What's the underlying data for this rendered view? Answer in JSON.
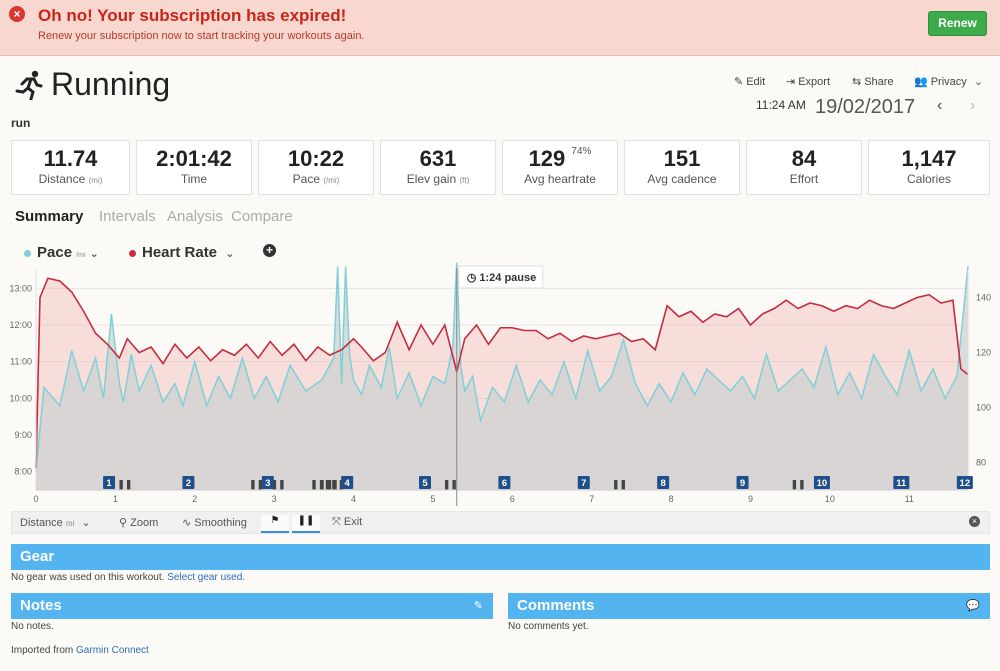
{
  "banner": {
    "title": "Oh no! Your subscription has expired!",
    "subtitle": "Renew your subscription now to start tracking your workouts again.",
    "renew_label": "Renew",
    "error_icon": "×"
  },
  "activity": {
    "title": "Running",
    "type": "run",
    "time": "11:24 AM",
    "date": "19/02/2017"
  },
  "toolbar": {
    "edit": "Edit",
    "export": "Export",
    "share": "Share",
    "privacy": "Privacy"
  },
  "stats": [
    {
      "value": "11.74",
      "label": "Distance",
      "unit": "(mi)"
    },
    {
      "value": "2:01:42",
      "label": "Time",
      "unit": ""
    },
    {
      "value": "10:22",
      "label": "Pace",
      "unit": "(/mi)"
    },
    {
      "value": "631",
      "label": "Elev gain",
      "unit": "(ft)"
    },
    {
      "value": "129",
      "sup": "74%",
      "label": "Avg heartrate",
      "unit": ""
    },
    {
      "value": "151",
      "label": "Avg cadence",
      "unit": ""
    },
    {
      "value": "84",
      "label": "Effort",
      "unit": ""
    },
    {
      "value": "1,147",
      "label": "Calories",
      "unit": ""
    }
  ],
  "tabs": [
    "Summary",
    "Intervals",
    "Analysis",
    "Compare"
  ],
  "legend": {
    "pace": "Pace",
    "pace_unit": "/mi",
    "heart_rate": "Heart Rate",
    "pace_color": "#7fd0d8",
    "hr_color": "#c42c3f"
  },
  "chart_data": {
    "type": "line",
    "title": "",
    "xlabel": "",
    "ylabel": "",
    "x_ticks": [
      "0",
      "1",
      "2",
      "3",
      "4",
      "5",
      "6",
      "7",
      "8",
      "9",
      "10",
      "11"
    ],
    "y_left_ticks": [
      "13:00",
      "12:00",
      "11:00",
      "10:00",
      "9:00",
      "8:00"
    ],
    "y_right_ticks": [
      "140",
      "120",
      "100",
      "80"
    ],
    "ylim_left": [
      "7:30",
      "13:30"
    ],
    "ylim_right": [
      70,
      150
    ],
    "xlim": [
      0,
      11.74
    ],
    "pause_annotation": "1:24 pause",
    "pause_at": 5.3,
    "lap_markers": [
      "1",
      "2",
      "3",
      "4",
      "5",
      "6",
      "7",
      "8",
      "9",
      "10",
      "11",
      "12"
    ],
    "lap_positions": [
      0.92,
      1.92,
      2.92,
      3.92,
      4.9,
      5.9,
      6.9,
      7.9,
      8.9,
      9.9,
      10.9,
      11.7
    ],
    "pause_markers": [
      1.12,
      2.78,
      3.05,
      3.55,
      3.65,
      3.72,
      3.8,
      5.22,
      7.35,
      9.6
    ],
    "series": [
      {
        "name": "Pace",
        "axis": "left",
        "color": "#7fd0d8",
        "x": [
          0,
          0.1,
          0.3,
          0.45,
          0.6,
          0.75,
          0.85,
          0.95,
          1.05,
          1.1,
          1.2,
          1.3,
          1.45,
          1.6,
          1.75,
          1.85,
          2.0,
          2.15,
          2.3,
          2.45,
          2.6,
          2.75,
          2.9,
          3.05,
          3.2,
          3.4,
          3.6,
          3.75,
          3.8,
          3.85,
          3.9,
          3.95,
          4.0,
          4.1,
          4.2,
          4.35,
          4.45,
          4.55,
          4.7,
          4.85,
          5.0,
          5.15,
          5.25,
          5.3,
          5.35,
          5.4,
          5.5,
          5.6,
          5.75,
          5.9,
          6.05,
          6.2,
          6.35,
          6.5,
          6.65,
          6.8,
          6.95,
          7.1,
          7.25,
          7.4,
          7.55,
          7.7,
          7.85,
          8.0,
          8.15,
          8.3,
          8.45,
          8.6,
          8.75,
          8.9,
          9.05,
          9.2,
          9.35,
          9.5,
          9.65,
          9.8,
          9.95,
          10.1,
          10.25,
          10.4,
          10.55,
          10.7,
          10.85,
          11.0,
          11.15,
          11.3,
          11.45,
          11.6,
          11.74
        ],
        "y": [
          8.0,
          10.3,
          9.8,
          11.3,
          10.2,
          11.1,
          10.0,
          12.3,
          10.4,
          9.9,
          11.2,
          10.2,
          10.9,
          9.9,
          10.4,
          9.8,
          11.0,
          9.8,
          10.6,
          10.0,
          11.1,
          10.0,
          10.6,
          9.9,
          10.9,
          10.2,
          10.5,
          11.1,
          13.6,
          10.4,
          13.6,
          11.2,
          10.5,
          10.1,
          10.9,
          10.3,
          11.4,
          10.0,
          10.7,
          9.8,
          10.6,
          10.4,
          11.4,
          13.7,
          10.9,
          10.2,
          10.6,
          9.4,
          10.3,
          9.9,
          10.9,
          9.9,
          10.5,
          10.1,
          11.0,
          10.0,
          11.3,
          10.2,
          10.6,
          11.6,
          10.4,
          9.8,
          10.4,
          9.9,
          10.7,
          10.1,
          10.8,
          10.5,
          10.2,
          10.6,
          10.0,
          11.2,
          10.2,
          10.5,
          10.8,
          10.3,
          11.4,
          10.1,
          10.7,
          10.0,
          11.2,
          10.6,
          10.1,
          11.3,
          10.2,
          10.8,
          10.0,
          10.6,
          13.6
        ]
      },
      {
        "name": "Heart Rate",
        "axis": "right",
        "color": "#c42c3f",
        "x": [
          0,
          0.05,
          0.15,
          0.3,
          0.45,
          0.6,
          0.75,
          0.9,
          1.05,
          1.15,
          1.3,
          1.45,
          1.6,
          1.75,
          1.9,
          2.05,
          2.2,
          2.35,
          2.5,
          2.65,
          2.8,
          2.95,
          3.1,
          3.25,
          3.4,
          3.55,
          3.7,
          3.85,
          4.0,
          4.1,
          4.25,
          4.4,
          4.55,
          4.7,
          4.85,
          5.0,
          5.15,
          5.3,
          5.4,
          5.55,
          5.7,
          5.85,
          6.0,
          6.15,
          6.3,
          6.45,
          6.6,
          6.75,
          6.9,
          7.05,
          7.2,
          7.35,
          7.5,
          7.65,
          7.8,
          7.95,
          8.1,
          8.25,
          8.4,
          8.55,
          8.7,
          8.85,
          9.0,
          9.15,
          9.3,
          9.45,
          9.6,
          9.75,
          9.9,
          10.05,
          10.2,
          10.35,
          10.5,
          10.65,
          10.8,
          10.95,
          11.1,
          11.25,
          11.4,
          11.55,
          11.65,
          11.74
        ],
        "y": [
          78,
          140,
          147,
          146,
          142,
          135,
          127,
          123,
          118,
          125,
          120,
          122,
          116,
          123,
          118,
          122,
          117,
          121,
          119,
          123,
          118,
          124,
          119,
          123,
          117,
          122,
          119,
          121,
          125,
          122,
          117,
          120,
          131,
          121,
          130,
          123,
          130,
          113,
          125,
          130,
          123,
          129,
          129,
          128,
          128,
          125,
          127,
          124,
          126,
          125,
          126,
          127,
          124,
          125,
          121,
          137,
          133,
          135,
          131,
          134,
          133,
          136,
          130,
          134,
          136,
          139,
          136,
          138,
          137,
          135,
          137,
          136,
          139,
          137,
          136,
          138,
          140,
          141,
          138,
          139,
          114,
          112
        ]
      }
    ]
  },
  "controls": {
    "axis_label": "Distance",
    "axis_unit": "mi",
    "zoom": "Zoom",
    "smoothing": "Smoothing",
    "exit": "Exit"
  },
  "gear": {
    "title": "Gear",
    "text": "No gear was used on this workout.",
    "link": "Select gear used."
  },
  "notes": {
    "title": "Notes",
    "text": "No notes."
  },
  "comments": {
    "title": "Comments",
    "text": "No comments yet."
  },
  "footer": {
    "prefix": "Imported from",
    "link": "Garmin Connect"
  }
}
